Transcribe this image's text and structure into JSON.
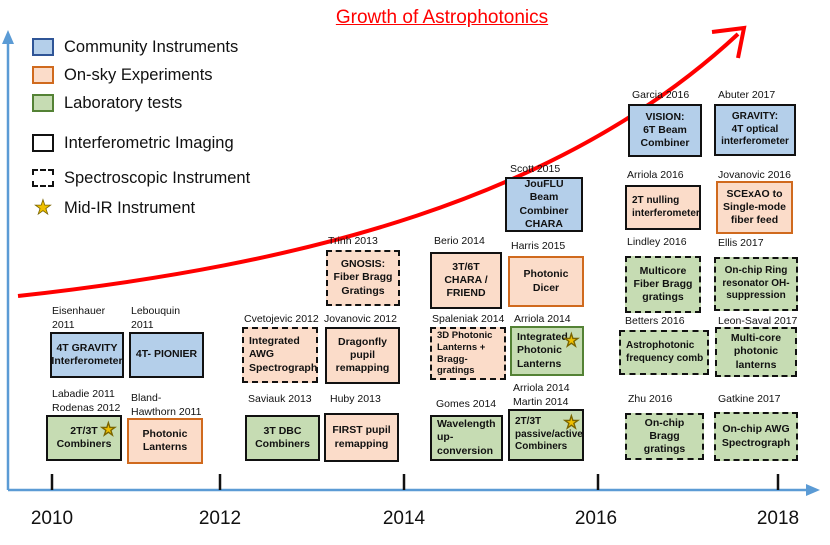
{
  "title": "Growth of Astrophotonics",
  "legend": [
    {
      "label": "Community Instruments",
      "style": "blue"
    },
    {
      "label": "On-sky Experiments",
      "style": "orange"
    },
    {
      "label": "Laboratory tests",
      "style": "green"
    },
    {
      "label": "Interferometric Imaging",
      "style": "solid"
    },
    {
      "label": "Spectroscopic Instrument",
      "style": "dashed"
    },
    {
      "label": "Mid-IR Instrument",
      "style": "star"
    }
  ],
  "years": [
    "2010",
    "2012",
    "2014",
    "2016",
    "2018"
  ],
  "colors": {
    "blue_fill": "#b4cfea",
    "orange_fill": "#fbdcc9",
    "green_fill": "#c6dcb3",
    "axis": "#5b9bd5",
    "growth_arrow": "#ff0000"
  },
  "refs": {
    "eisenhauer": "Eisenhauer\n2011",
    "lebouquin": "Lebouquin\n2011",
    "labadie": "Labadie 2011\nRodenas 2012",
    "bland": "Bland-\nHawthorn 2011",
    "cvetojevic": "Cvetojevic 2012",
    "jovanovic2012": "Jovanovic 2012",
    "trinh": "Trinh 2013",
    "saviauk": "Saviauk 2013",
    "huby": "Huby 2013",
    "berio": "Berio 2014",
    "spaleniak": "Spaleniak 2014",
    "gomes": "Gomes 2014",
    "scott": "Scott 2015",
    "harris": "Harris 2015",
    "arriola2014a": "Arriola 2014",
    "arriola_martin": "Arriola 2014\nMartin 2014",
    "garcia": "Garcia 2016",
    "arriola2016": "Arriola 2016",
    "lindley": "Lindley 2016",
    "betters": "Betters 2016",
    "zhu": "Zhu 2016",
    "abuter": "Abuter 2017",
    "jovanovic2016": "Jovanovic 2016",
    "ellis": "Ellis 2017",
    "leonsaval": "Leon-Saval 2017",
    "gatkine": "Gatkine 2017"
  },
  "boxes": {
    "gravity4t": "4T GRAVITY\nInterferometer",
    "pionier": "4T- PIONIER",
    "combiners2t3t": "2T/3T\nCombiners",
    "photonic_lanterns": "Photonic\nLanterns",
    "integrated_awg": "Integrated\nAWG\nSpectrograph",
    "dragonfly": "Dragonfly\npupil\nremapping",
    "gnosis": "GNOSIS:\nFiber Bragg\nGratings",
    "dbc3t": "3T DBC\nCombiners",
    "first": "FIRST pupil\nremapping",
    "chara_friend": "3T/6T\nCHARA /\nFRIEND",
    "lanterns_bragg": "3D Photonic\nLanterns +\nBragg-gratings",
    "wavelength": "Wavelength\nup-conversion",
    "joufluo": "JouFLU Beam\nCombiner\nCHARA",
    "dicer": "Photonic\nDicer",
    "integrated_lanterns": "Integrated\nPhotonic\nLanterns",
    "passive_active": "2T/3T\npassive/active\nCombiners",
    "vision": "VISION:\n6T Beam\nCombiner",
    "nulling": "2T nulling\ninterferometer",
    "multicore_fbg": "Multicore\nFiber Bragg\ngratings",
    "freq_comb": "Astrophotonic\nfrequency comb",
    "onchip_bragg": "On-chip Bragg\ngratings",
    "gravity_4t": "GRAVITY:\n4T optical\ninterferometer",
    "scexao": "SCExAO to\nSingle-mode\nfiber feed",
    "ring_resonator": "On-chip Ring\nresonator OH-\nsuppression",
    "multicore_lanterns": "Multi-core\nphotonic\nlanterns",
    "onchip_awg": "On-chip AWG\nSpectrograph"
  }
}
